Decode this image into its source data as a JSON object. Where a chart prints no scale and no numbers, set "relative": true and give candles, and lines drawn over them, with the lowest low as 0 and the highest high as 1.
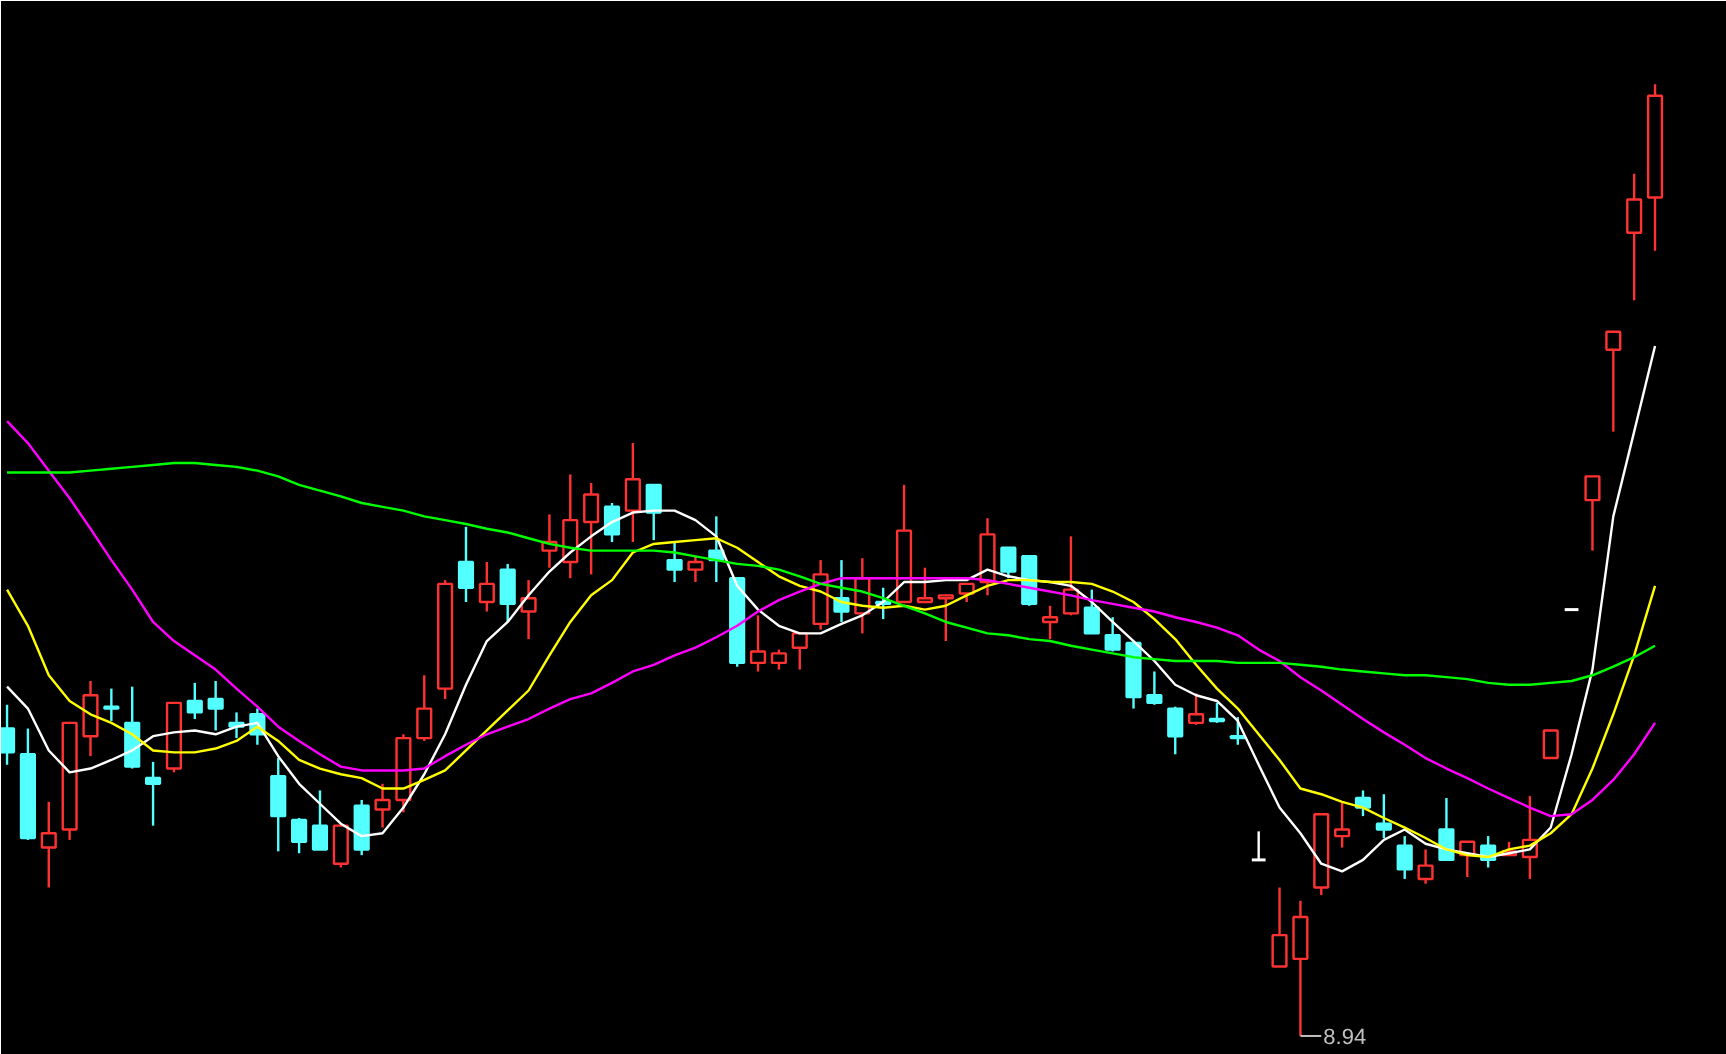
{
  "chart_data": {
    "type": "candlestick",
    "relative": true,
    "categories": [
      null,
      null,
      null,
      null,
      null,
      null,
      null,
      null,
      null,
      null,
      null,
      null,
      null,
      null,
      null,
      null,
      null,
      null,
      null,
      null,
      null,
      null,
      null,
      null,
      null,
      null,
      null,
      null,
      null,
      null,
      null,
      null,
      null,
      null,
      null,
      null,
      null,
      null,
      null,
      null,
      null,
      null,
      null,
      null,
      null,
      null,
      null,
      null,
      null,
      null,
      null,
      null,
      null,
      null,
      null,
      null,
      null,
      null,
      null,
      null,
      null,
      null,
      null,
      null,
      null,
      null,
      null,
      null,
      null,
      null,
      null,
      null,
      null,
      null,
      null,
      null,
      null,
      null,
      null,
      null
    ],
    "ohlc": [
      [
        0.323,
        0.348,
        0.285,
        0.298
      ],
      [
        0.296,
        0.323,
        0.206,
        0.208
      ],
      [
        0.198,
        0.246,
        0.156,
        0.213
      ],
      [
        0.217,
        0.329,
        0.206,
        0.329
      ],
      [
        0.315,
        0.373,
        0.294,
        0.358
      ],
      [
        0.346,
        0.365,
        0.331,
        0.344
      ],
      [
        0.329,
        0.367,
        0.281,
        0.283
      ],
      [
        0.271,
        0.288,
        0.221,
        0.265
      ],
      [
        0.281,
        0.35,
        0.277,
        0.35
      ],
      [
        0.352,
        0.371,
        0.333,
        0.34
      ],
      [
        0.354,
        0.373,
        0.321,
        0.344
      ],
      [
        0.329,
        0.34,
        0.313,
        0.325
      ],
      [
        0.338,
        0.344,
        0.306,
        0.317
      ],
      [
        0.273,
        0.292,
        0.194,
        0.231
      ],
      [
        0.227,
        0.229,
        0.192,
        0.204
      ],
      [
        0.221,
        0.258,
        0.196,
        0.196
      ],
      [
        0.181,
        0.221,
        0.177,
        0.221
      ],
      [
        0.242,
        0.248,
        0.19,
        0.196
      ],
      [
        0.238,
        0.265,
        0.219,
        0.248
      ],
      [
        0.248,
        0.317,
        0.235,
        0.313
      ],
      [
        0.313,
        0.379,
        0.31,
        0.344
      ],
      [
        0.365,
        0.479,
        0.354,
        0.475
      ],
      [
        0.498,
        0.535,
        0.456,
        0.471
      ],
      [
        0.456,
        0.498,
        0.446,
        0.475
      ],
      [
        0.49,
        0.496,
        0.435,
        0.454
      ],
      [
        0.446,
        0.479,
        0.417,
        0.46
      ],
      [
        0.51,
        0.548,
        0.492,
        0.519
      ],
      [
        0.498,
        0.59,
        0.481,
        0.542
      ],
      [
        0.54,
        0.581,
        0.485,
        0.569
      ],
      [
        0.556,
        0.56,
        0.519,
        0.527
      ],
      [
        0.552,
        0.623,
        0.519,
        0.585
      ],
      [
        0.579,
        0.579,
        0.521,
        0.55
      ],
      [
        0.5,
        0.519,
        0.477,
        0.49
      ],
      [
        0.49,
        0.504,
        0.477,
        0.498
      ],
      [
        0.51,
        0.546,
        0.477,
        0.5
      ],
      [
        0.481,
        0.481,
        0.388,
        0.392
      ],
      [
        0.392,
        0.442,
        0.383,
        0.404
      ],
      [
        0.392,
        0.406,
        0.385,
        0.402
      ],
      [
        0.408,
        0.423,
        0.385,
        0.423
      ],
      [
        0.433,
        0.5,
        0.427,
        0.485
      ],
      [
        0.46,
        0.5,
        0.435,
        0.446
      ],
      [
        0.444,
        0.502,
        0.423,
        0.481
      ],
      [
        0.456,
        0.471,
        0.438,
        0.454
      ],
      [
        0.456,
        0.579,
        0.456,
        0.531
      ],
      [
        0.456,
        0.492,
        0.456,
        0.46
      ],
      [
        0.46,
        0.463,
        0.415,
        0.463
      ],
      [
        0.465,
        0.475,
        0.456,
        0.475
      ],
      [
        0.477,
        0.544,
        0.463,
        0.527
      ],
      [
        0.513,
        0.513,
        0.481,
        0.488
      ],
      [
        0.504,
        0.504,
        0.452,
        0.454
      ],
      [
        0.435,
        0.452,
        0.417,
        0.44
      ],
      [
        0.444,
        0.525,
        0.442,
        0.469
      ],
      [
        0.45,
        0.469,
        0.423,
        0.423
      ],
      [
        0.421,
        0.44,
        0.404,
        0.406
      ],
      [
        0.413,
        0.413,
        0.344,
        0.356
      ],
      [
        0.358,
        0.383,
        0.348,
        0.35
      ],
      [
        0.344,
        0.346,
        0.296,
        0.315
      ],
      [
        0.329,
        0.36,
        0.327,
        0.338
      ],
      [
        0.333,
        0.35,
        0.329,
        0.331
      ],
      [
        0.315,
        0.335,
        0.306,
        0.313
      ],
      [
        0.185,
        0.215,
        0.185,
        0.185
      ],
      [
        0.073,
        0.156,
        0.073,
        0.106
      ],
      [
        0.081,
        0.142,
        0,
        0.125
      ],
      [
        0.156,
        0.233,
        0.148,
        0.233
      ],
      [
        0.21,
        0.246,
        0.198,
        0.217
      ],
      [
        0.25,
        0.258,
        0.231,
        0.24
      ],
      [
        0.223,
        0.254,
        0.208,
        0.217
      ],
      [
        0.2,
        0.21,
        0.165,
        0.175
      ],
      [
        0.165,
        0.196,
        0.16,
        0.179
      ],
      [
        0.217,
        0.25,
        0.185,
        0.185
      ],
      [
        0.19,
        0.204,
        0.167,
        0.204
      ],
      [
        0.2,
        0.21,
        0.177,
        0.185
      ],
      [
        0.19,
        0.204,
        0.19,
        0.194
      ],
      [
        0.188,
        0.252,
        0.165,
        0.206
      ],
      [
        0.292,
        0.321,
        0.292,
        0.321
      ],
      [
        0.448,
        0.448,
        0.448,
        0.448
      ],
      [
        0.563,
        0.588,
        0.51,
        0.588
      ],
      [
        0.721,
        0.74,
        0.635,
        0.74
      ],
      [
        0.844,
        0.906,
        0.773,
        0.879
      ],
      [
        0.881,
        1.0,
        0.825,
        0.988
      ]
    ],
    "colors": [
      "#54ffff",
      "#54ffff",
      "#ff3232",
      "#ff3232",
      "#ff3232",
      "#54ffff",
      "#54ffff",
      "#54ffff",
      "#ff3232",
      "#54ffff",
      "#54ffff",
      "#54ffff",
      "#54ffff",
      "#54ffff",
      "#54ffff",
      "#54ffff",
      "#ff3232",
      "#54ffff",
      "#ff3232",
      "#ff3232",
      "#ff3232",
      "#ff3232",
      "#54ffff",
      "#ff3232",
      "#54ffff",
      "#ff3232",
      "#ff3232",
      "#ff3232",
      "#ff3232",
      "#54ffff",
      "#ff3232",
      "#54ffff",
      "#54ffff",
      "#ff3232",
      "#54ffff",
      "#54ffff",
      "#ff3232",
      "#ff3232",
      "#ff3232",
      "#ff3232",
      "#54ffff",
      "#ff3232",
      "#54ffff",
      "#ff3232",
      "#ff3232",
      "#ff3232",
      "#ff3232",
      "#ff3232",
      "#54ffff",
      "#54ffff",
      "#ff3232",
      "#ff3232",
      "#54ffff",
      "#54ffff",
      "#54ffff",
      "#54ffff",
      "#54ffff",
      "#ff3232",
      "#54ffff",
      "#54ffff",
      "#ffffff",
      "#ff3232",
      "#ff3232",
      "#ff3232",
      "#ff3232",
      "#54ffff",
      "#54ffff",
      "#54ffff",
      "#ff3232",
      "#54ffff",
      "#ff3232",
      "#54ffff",
      "#ff3232",
      "#ff3232",
      "#ff3232",
      "#ffffff",
      "#ff3232",
      "#ff3232",
      "#ff3232",
      "#ff3232"
    ],
    "series": [
      {
        "type": "line",
        "color": "#ffffff",
        "values": [
          0.367,
          0.344,
          0.3,
          0.277,
          0.281,
          0.29,
          0.3,
          0.315,
          0.319,
          0.321,
          0.317,
          0.325,
          0.329,
          0.294,
          0.265,
          0.244,
          0.223,
          0.21,
          0.213,
          0.24,
          0.275,
          0.317,
          0.369,
          0.415,
          0.435,
          0.463,
          0.488,
          0.508,
          0.525,
          0.54,
          0.55,
          0.552,
          0.552,
          0.542,
          0.525,
          0.473,
          0.448,
          0.431,
          0.423,
          0.423,
          0.433,
          0.442,
          0.456,
          0.477,
          0.477,
          0.479,
          0.479,
          0.49,
          0.483,
          0.479,
          0.477,
          0.473,
          0.456,
          0.435,
          0.415,
          0.394,
          0.369,
          0.358,
          0.352,
          0.331,
          0.285,
          0.24,
          0.213,
          0.181,
          0.173,
          0.185,
          0.206,
          0.217,
          0.202,
          0.196,
          0.192,
          0.188,
          0.192,
          0.196,
          0.219,
          0.296,
          0.385,
          0.546,
          0.635,
          0.725
        ]
      },
      {
        "type": "line",
        "color": "#ffff00",
        "values": [
          0.469,
          0.431,
          0.379,
          0.352,
          0.338,
          0.329,
          0.317,
          0.3,
          0.298,
          0.298,
          0.302,
          0.31,
          0.325,
          0.31,
          0.29,
          0.281,
          0.275,
          0.271,
          0.26,
          0.26,
          0.269,
          0.279,
          0.3,
          0.321,
          0.342,
          0.363,
          0.4,
          0.435,
          0.463,
          0.479,
          0.508,
          0.517,
          0.519,
          0.521,
          0.523,
          0.513,
          0.498,
          0.483,
          0.473,
          0.467,
          0.456,
          0.452,
          0.45,
          0.452,
          0.448,
          0.452,
          0.463,
          0.473,
          0.479,
          0.479,
          0.477,
          0.477,
          0.475,
          0.467,
          0.456,
          0.438,
          0.417,
          0.39,
          0.365,
          0.344,
          0.317,
          0.29,
          0.26,
          0.254,
          0.246,
          0.24,
          0.229,
          0.219,
          0.208,
          0.196,
          0.19,
          0.188,
          0.196,
          0.2,
          0.213,
          0.233,
          0.281,
          0.338,
          0.4,
          0.473
        ]
      },
      {
        "type": "line",
        "color": "#ff00ff",
        "values": [
          0.646,
          0.623,
          0.594,
          0.565,
          0.533,
          0.5,
          0.469,
          0.435,
          0.415,
          0.4,
          0.385,
          0.365,
          0.346,
          0.325,
          0.31,
          0.296,
          0.283,
          0.279,
          0.279,
          0.279,
          0.281,
          0.294,
          0.306,
          0.317,
          0.325,
          0.333,
          0.344,
          0.354,
          0.36,
          0.371,
          0.383,
          0.39,
          0.4,
          0.408,
          0.419,
          0.431,
          0.446,
          0.458,
          0.467,
          0.475,
          0.481,
          0.481,
          0.481,
          0.481,
          0.481,
          0.481,
          0.481,
          0.479,
          0.475,
          0.471,
          0.467,
          0.463,
          0.458,
          0.454,
          0.45,
          0.446,
          0.44,
          0.435,
          0.429,
          0.421,
          0.406,
          0.394,
          0.377,
          0.363,
          0.348,
          0.333,
          0.319,
          0.306,
          0.292,
          0.281,
          0.271,
          0.26,
          0.25,
          0.24,
          0.231,
          0.233,
          0.248,
          0.269,
          0.296,
          0.329
        ]
      },
      {
        "type": "line",
        "color": "#00ff00",
        "values": [
          0.592,
          0.592,
          0.592,
          0.592,
          0.594,
          0.596,
          0.598,
          0.6,
          0.602,
          0.602,
          0.6,
          0.598,
          0.594,
          0.588,
          0.579,
          0.573,
          0.567,
          0.56,
          0.556,
          0.552,
          0.546,
          0.542,
          0.538,
          0.533,
          0.529,
          0.523,
          0.517,
          0.513,
          0.51,
          0.51,
          0.51,
          0.51,
          0.508,
          0.504,
          0.5,
          0.496,
          0.494,
          0.49,
          0.483,
          0.475,
          0.471,
          0.467,
          0.46,
          0.452,
          0.444,
          0.435,
          0.429,
          0.423,
          0.421,
          0.417,
          0.415,
          0.41,
          0.406,
          0.402,
          0.398,
          0.396,
          0.394,
          0.394,
          0.394,
          0.392,
          0.392,
          0.392,
          0.39,
          0.388,
          0.385,
          0.383,
          0.381,
          0.379,
          0.379,
          0.377,
          0.375,
          0.371,
          0.369,
          0.369,
          0.371,
          0.373,
          0.379,
          0.388,
          0.398,
          0.41
        ]
      }
    ],
    "annotations": [
      "8.94"
    ]
  }
}
